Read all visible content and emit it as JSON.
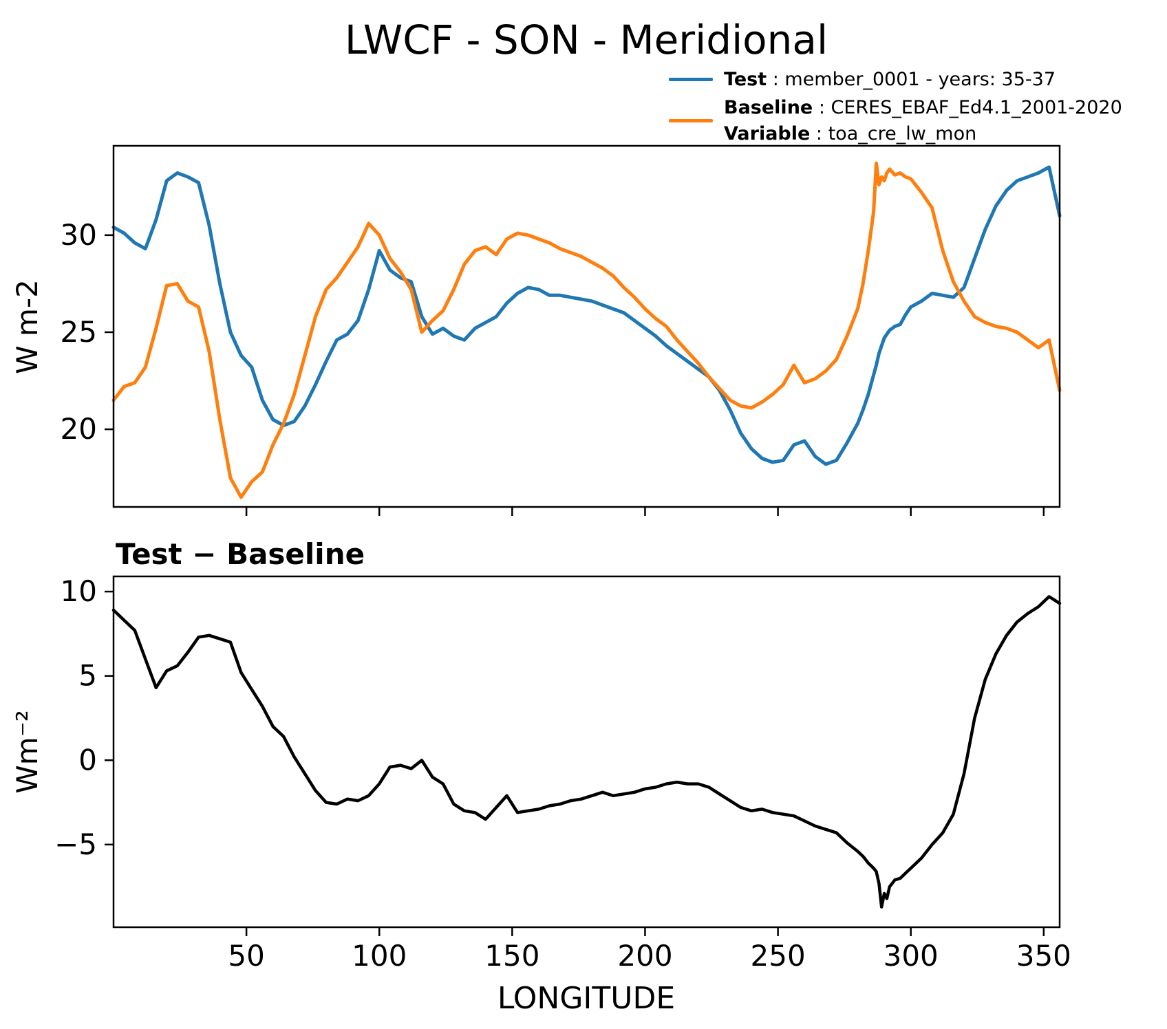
{
  "title": "LWCF - SON - Meridional",
  "legend": {
    "entries": [
      {
        "lines": [
          {
            "bold": "Test",
            "rest": " : member_0001 - years: 35-37"
          }
        ]
      },
      {
        "lines": [
          {
            "bold": "Baseline",
            "rest": " : CERES_EBAF_Ed4.1_2001-2020"
          },
          {
            "bold": "Variable",
            "rest": " : toa_cre_lw_mon"
          }
        ]
      }
    ]
  },
  "chart_data": {
    "type": "line",
    "title": "LWCF - SON - Meridional",
    "xlabel": "LONGITUDE",
    "grid": false,
    "legend_position": "upper right, above axes",
    "x": [
      0,
      4,
      8,
      12,
      16,
      20,
      24,
      28,
      32,
      36,
      40,
      44,
      48,
      52,
      56,
      60,
      64,
      68,
      72,
      76,
      80,
      84,
      88,
      92,
      96,
      100,
      104,
      108,
      112,
      116,
      120,
      124,
      128,
      132,
      136,
      140,
      144,
      148,
      152,
      156,
      160,
      164,
      168,
      172,
      176,
      180,
      184,
      188,
      192,
      196,
      200,
      204,
      208,
      212,
      216,
      220,
      224,
      228,
      232,
      236,
      240,
      244,
      248,
      252,
      256,
      260,
      264,
      268,
      272,
      276,
      280,
      282,
      284,
      286,
      287,
      288,
      289,
      290,
      291,
      292,
      294,
      296,
      298,
      300,
      304,
      308,
      312,
      316,
      320,
      324,
      328,
      332,
      336,
      340,
      344,
      348,
      352,
      356
    ],
    "panels": [
      {
        "name": "comparison",
        "ylabel": "W m-2",
        "xlim": [
          0,
          356
        ],
        "ylim": [
          16.0,
          34.6
        ],
        "yticks": [
          20,
          25,
          30
        ],
        "xticks": [
          50,
          100,
          150,
          200,
          250,
          300,
          350
        ],
        "show_xtick_labels": false,
        "series": [
          {
            "name": "Test",
            "color": "#1f77b4",
            "values": [
              30.4,
              30.1,
              29.6,
              29.3,
              30.8,
              32.8,
              33.2,
              33.0,
              32.7,
              30.5,
              27.5,
              25.0,
              23.8,
              23.2,
              21.5,
              20.5,
              20.2,
              20.4,
              21.2,
              22.3,
              23.5,
              24.6,
              24.9,
              25.6,
              27.2,
              29.2,
              28.2,
              27.8,
              27.6,
              25.8,
              24.9,
              25.2,
              24.8,
              24.6,
              25.2,
              25.5,
              25.8,
              26.5,
              27.0,
              27.3,
              27.2,
              26.9,
              26.9,
              26.8,
              26.7,
              26.6,
              26.4,
              26.2,
              26.0,
              25.6,
              25.2,
              24.8,
              24.3,
              23.9,
              23.5,
              23.1,
              22.7,
              22.0,
              21.0,
              19.8,
              19.0,
              18.5,
              18.3,
              18.4,
              19.2,
              19.4,
              18.6,
              18.2,
              18.4,
              19.3,
              20.3,
              21.0,
              21.8,
              22.8,
              23.3,
              23.9,
              24.3,
              24.7,
              24.9,
              25.1,
              25.3,
              25.4,
              25.9,
              26.3,
              26.6,
              27.0,
              26.9,
              26.8,
              27.3,
              28.8,
              30.3,
              31.5,
              32.3,
              32.8,
              33.0,
              33.2,
              33.5,
              31.0
            ]
          },
          {
            "name": "Baseline",
            "color": "#ff7f0e",
            "values": [
              21.5,
              22.2,
              22.4,
              23.2,
              25.2,
              27.4,
              27.5,
              26.6,
              26.3,
              24.0,
              20.5,
              17.5,
              16.5,
              17.3,
              17.8,
              19.2,
              20.3,
              21.8,
              23.8,
              25.8,
              27.2,
              27.8,
              28.6,
              29.4,
              30.6,
              30.0,
              28.8,
              28.1,
              27.2,
              25.0,
              25.6,
              26.1,
              27.2,
              28.5,
              29.2,
              29.4,
              29.0,
              29.8,
              30.1,
              30.0,
              29.8,
              29.6,
              29.3,
              29.1,
              28.9,
              28.6,
              28.3,
              27.9,
              27.3,
              26.8,
              26.2,
              25.7,
              25.3,
              24.6,
              24.0,
              23.4,
              22.7,
              22.1,
              21.5,
              21.2,
              21.1,
              21.4,
              21.8,
              22.3,
              23.3,
              22.4,
              22.6,
              23.0,
              23.6,
              24.8,
              26.2,
              27.5,
              29.2,
              31.2,
              33.7,
              32.6,
              33.0,
              32.8,
              33.2,
              33.4,
              33.1,
              33.2,
              33.0,
              32.9,
              32.2,
              31.4,
              29.2,
              27.6,
              26.6,
              25.8,
              25.5,
              25.3,
              25.2,
              25.0,
              24.6,
              24.2,
              24.6,
              22.0
            ]
          }
        ]
      },
      {
        "name": "difference",
        "title": "Test − Baseline",
        "ylabel": "Wm⁻²",
        "xlim": [
          0,
          356
        ],
        "ylim": [
          -9.9,
          10.9
        ],
        "yticks": [
          -5,
          0,
          5,
          10
        ],
        "xticks": [
          50,
          100,
          150,
          200,
          250,
          300,
          350
        ],
        "show_xtick_labels": true,
        "series": [
          {
            "name": "Test - Baseline",
            "color": "#000000",
            "values": [
              8.9,
              8.3,
              7.7,
              6.0,
              4.3,
              5.3,
              5.6,
              6.4,
              7.3,
              7.4,
              7.2,
              7.0,
              5.2,
              4.2,
              3.2,
              2.0,
              1.4,
              0.2,
              -0.8,
              -1.8,
              -2.5,
              -2.6,
              -2.3,
              -2.4,
              -2.1,
              -1.4,
              -0.4,
              -0.3,
              -0.5,
              0.0,
              -1.0,
              -1.4,
              -2.6,
              -3.0,
              -3.1,
              -3.5,
              -2.8,
              -2.1,
              -3.1,
              -3.0,
              -2.9,
              -2.7,
              -2.6,
              -2.4,
              -2.3,
              -2.1,
              -1.9,
              -2.1,
              -2.0,
              -1.9,
              -1.7,
              -1.6,
              -1.4,
              -1.3,
              -1.4,
              -1.4,
              -1.6,
              -2.0,
              -2.4,
              -2.8,
              -3.0,
              -2.9,
              -3.1,
              -3.2,
              -3.3,
              -3.6,
              -3.9,
              -4.1,
              -4.3,
              -4.9,
              -5.4,
              -5.7,
              -6.1,
              -6.4,
              -6.6,
              -7.3,
              -8.7,
              -7.9,
              -8.2,
              -7.5,
              -7.1,
              -7.0,
              -6.7,
              -6.4,
              -5.8,
              -5.0,
              -4.3,
              -3.2,
              -0.8,
              2.5,
              4.8,
              6.3,
              7.4,
              8.2,
              8.7,
              9.1,
              9.7,
              9.3
            ]
          }
        ]
      }
    ]
  }
}
